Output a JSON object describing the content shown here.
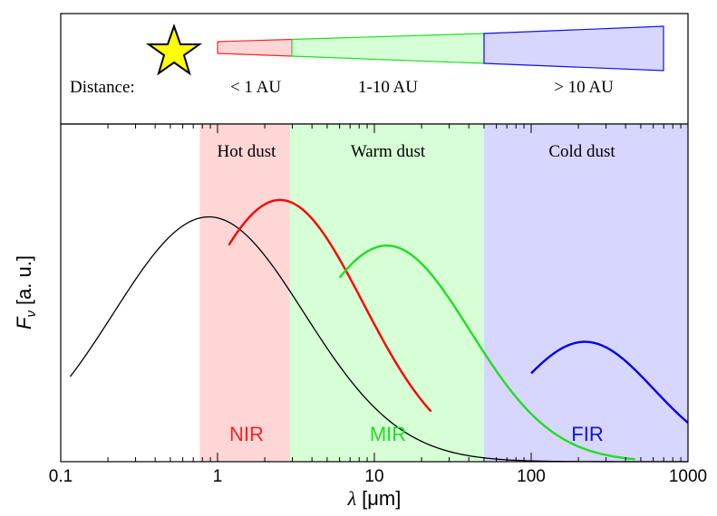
{
  "chart_data": {
    "type": "line",
    "x_scale": "log",
    "xlim": [
      0.1,
      1000
    ],
    "xlabel_symbol": "λ",
    "xlabel_unit": "[μm]",
    "ylabel_symbol": "F",
    "ylabel_subscript": "ν",
    "ylabel_unit": "[a. u.]",
    "x_ticks": [
      {
        "value": 0.1,
        "label": "0.1"
      },
      {
        "value": 1,
        "label": "1"
      },
      {
        "value": 10,
        "label": "10"
      },
      {
        "value": 100,
        "label": "100"
      },
      {
        "value": 1000,
        "label": "1000"
      }
    ],
    "regions": [
      {
        "name": "Hot dust",
        "band": "NIR",
        "range": [
          0.77,
          2.9
        ],
        "fill": "#ffd6d6",
        "color": "#ff2020"
      },
      {
        "name": "Warm dust",
        "band": "MIR",
        "range": [
          2.9,
          50
        ],
        "fill": "#d6ffd6",
        "color": "#22dd22"
      },
      {
        "name": "Cold dust",
        "band": "FIR",
        "range": [
          50,
          1000
        ],
        "fill": "#d6d6ff",
        "color": "#1010ee"
      }
    ],
    "series": [
      {
        "name": "stellar",
        "color": "#000000",
        "peak_x": 0.88,
        "peak_y": 0.725,
        "width": 0.86,
        "start_x": 0.115
      },
      {
        "name": "hot",
        "color": "#ff0000",
        "peak_x": 2.5,
        "peak_y": 0.775,
        "width": 0.75,
        "start_x": 1.18,
        "end_x": 23
      },
      {
        "name": "warm",
        "color": "#22dd22",
        "peak_x": 12,
        "peak_y": 0.64,
        "width": 0.75,
        "start_x": 6,
        "end_x": 460
      },
      {
        "name": "cold",
        "color": "#0000ee",
        "peak_x": 220,
        "peak_y": 0.355,
        "width": 0.62,
        "start_x": 100,
        "end_x": 1000
      }
    ]
  },
  "distance_panel": {
    "label": "Distance:",
    "zones": [
      {
        "label": "< 1 AU",
        "fill": "#ffd6d6",
        "stroke": "#ff2020"
      },
      {
        "label": "1-10 AU",
        "fill": "#d6ffd6",
        "stroke": "#22dd22"
      },
      {
        "label": "> 10 AU",
        "fill": "#d6d6ff",
        "stroke": "#1010ee"
      }
    ],
    "star_color": "#ffff00"
  }
}
